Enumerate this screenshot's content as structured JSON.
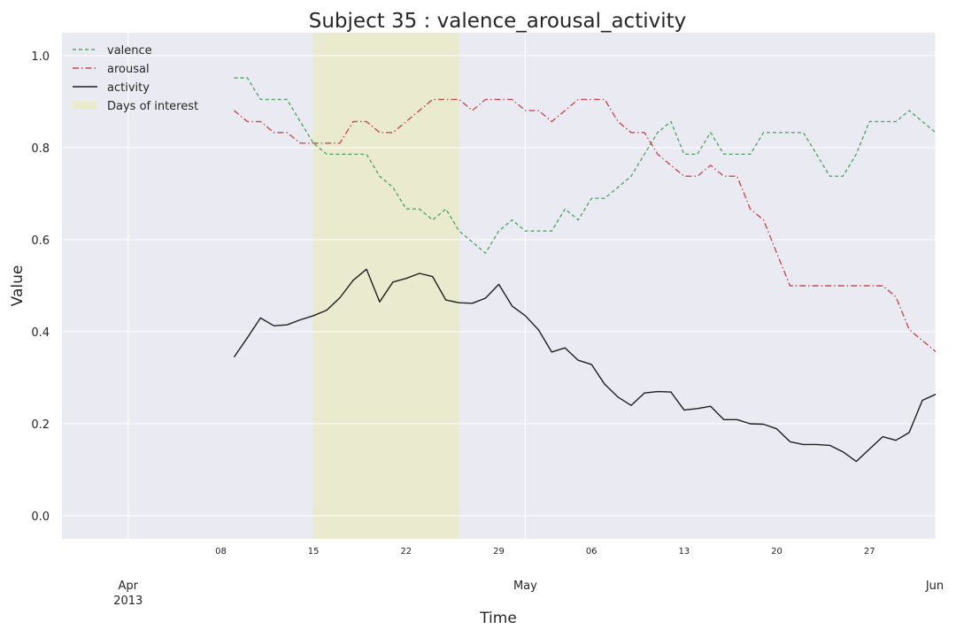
{
  "chart_data": {
    "type": "line",
    "title": "Subject 35 : valence_arousal_activity",
    "xlabel": "Time",
    "ylabel": "Value",
    "xlim": [
      "2013-03-27",
      "2013-06-01"
    ],
    "ylim": [
      -0.05,
      1.05
    ],
    "grid": true,
    "legend_position": "top-left",
    "y_ticks": [
      "0.0",
      "0.2",
      "0.4",
      "0.6",
      "0.8",
      "1.0"
    ],
    "y_tick_values": [
      0.0,
      0.2,
      0.4,
      0.6,
      0.8,
      1.0
    ],
    "x_minor_ticks": [
      {
        "date": "2013-04-08",
        "label": "08"
      },
      {
        "date": "2013-04-15",
        "label": "15"
      },
      {
        "date": "2013-04-22",
        "label": "22"
      },
      {
        "date": "2013-04-29",
        "label": "29"
      },
      {
        "date": "2013-05-06",
        "label": "06"
      },
      {
        "date": "2013-05-13",
        "label": "13"
      },
      {
        "date": "2013-05-20",
        "label": "20"
      },
      {
        "date": "2013-05-27",
        "label": "27"
      }
    ],
    "x_major_ticks": [
      {
        "date": "2013-04-01",
        "label": "Apr",
        "sublabel": "2013"
      },
      {
        "date": "2013-05-01",
        "label": "May",
        "sublabel": ""
      },
      {
        "date": "2013-06-01",
        "label": "Jun",
        "sublabel": ""
      }
    ],
    "shaded_region": {
      "label": "Days of interest",
      "start": "2013-04-15",
      "end": "2013-04-26",
      "color": "#eaeacf"
    },
    "series": [
      {
        "name": "valence",
        "color": "#55a868",
        "dash": "4,3",
        "points": [
          [
            "2013-04-09",
            0.952
          ],
          [
            "2013-04-10",
            0.952
          ],
          [
            "2013-04-11",
            0.905
          ],
          [
            "2013-04-12",
            0.905
          ],
          [
            "2013-04-13",
            0.905
          ],
          [
            "2013-04-14",
            0.857
          ],
          [
            "2013-04-15",
            0.81
          ],
          [
            "2013-04-16",
            0.786
          ],
          [
            "2013-04-17",
            0.786
          ],
          [
            "2013-04-18",
            0.786
          ],
          [
            "2013-04-19",
            0.786
          ],
          [
            "2013-04-20",
            0.738
          ],
          [
            "2013-04-21",
            0.714
          ],
          [
            "2013-04-22",
            0.667
          ],
          [
            "2013-04-23",
            0.667
          ],
          [
            "2013-04-24",
            0.643
          ],
          [
            "2013-04-25",
            0.667
          ],
          [
            "2013-04-26",
            0.619
          ],
          [
            "2013-04-27",
            0.595
          ],
          [
            "2013-04-28",
            0.571
          ],
          [
            "2013-04-29",
            0.619
          ],
          [
            "2013-04-30",
            0.643
          ],
          [
            "2013-05-01",
            0.619
          ],
          [
            "2013-05-02",
            0.619
          ],
          [
            "2013-05-03",
            0.619
          ],
          [
            "2013-05-04",
            0.667
          ],
          [
            "2013-05-05",
            0.643
          ],
          [
            "2013-05-06",
            0.69
          ],
          [
            "2013-05-07",
            0.69
          ],
          [
            "2013-05-08",
            0.714
          ],
          [
            "2013-05-09",
            0.738
          ],
          [
            "2013-05-10",
            0.786
          ],
          [
            "2013-05-11",
            0.833
          ],
          [
            "2013-05-12",
            0.857
          ],
          [
            "2013-05-13",
            0.786
          ],
          [
            "2013-05-14",
            0.786
          ],
          [
            "2013-05-15",
            0.833
          ],
          [
            "2013-05-16",
            0.786
          ],
          [
            "2013-05-17",
            0.786
          ],
          [
            "2013-05-18",
            0.786
          ],
          [
            "2013-05-19",
            0.833
          ],
          [
            "2013-05-20",
            0.833
          ],
          [
            "2013-05-21",
            0.833
          ],
          [
            "2013-05-22",
            0.833
          ],
          [
            "2013-05-23",
            0.786
          ],
          [
            "2013-05-24",
            0.738
          ],
          [
            "2013-05-25",
            0.738
          ],
          [
            "2013-05-26",
            0.786
          ],
          [
            "2013-05-27",
            0.857
          ],
          [
            "2013-05-28",
            0.857
          ],
          [
            "2013-05-29",
            0.857
          ],
          [
            "2013-05-30",
            0.881
          ],
          [
            "2013-05-31",
            0.857
          ],
          [
            "2013-06-01",
            0.833
          ]
        ]
      },
      {
        "name": "arousal",
        "color": "#c44e52",
        "dash": "7,3,1.5,3",
        "points": [
          [
            "2013-04-09",
            0.881
          ],
          [
            "2013-04-10",
            0.857
          ],
          [
            "2013-04-11",
            0.857
          ],
          [
            "2013-04-12",
            0.833
          ],
          [
            "2013-04-13",
            0.833
          ],
          [
            "2013-04-14",
            0.81
          ],
          [
            "2013-04-15",
            0.81
          ],
          [
            "2013-04-16",
            0.81
          ],
          [
            "2013-04-17",
            0.81
          ],
          [
            "2013-04-18",
            0.857
          ],
          [
            "2013-04-19",
            0.857
          ],
          [
            "2013-04-20",
            0.833
          ],
          [
            "2013-04-21",
            0.833
          ],
          [
            "2013-04-22",
            0.857
          ],
          [
            "2013-04-23",
            0.881
          ],
          [
            "2013-04-24",
            0.905
          ],
          [
            "2013-04-25",
            0.905
          ],
          [
            "2013-04-26",
            0.905
          ],
          [
            "2013-04-27",
            0.881
          ],
          [
            "2013-04-28",
            0.905
          ],
          [
            "2013-04-29",
            0.905
          ],
          [
            "2013-04-30",
            0.905
          ],
          [
            "2013-05-01",
            0.881
          ],
          [
            "2013-05-02",
            0.881
          ],
          [
            "2013-05-03",
            0.857
          ],
          [
            "2013-05-04",
            0.881
          ],
          [
            "2013-05-05",
            0.905
          ],
          [
            "2013-05-06",
            0.905
          ],
          [
            "2013-05-07",
            0.905
          ],
          [
            "2013-05-08",
            0.857
          ],
          [
            "2013-05-09",
            0.833
          ],
          [
            "2013-05-10",
            0.833
          ],
          [
            "2013-05-11",
            0.786
          ],
          [
            "2013-05-12",
            0.762
          ],
          [
            "2013-05-13",
            0.738
          ],
          [
            "2013-05-14",
            0.738
          ],
          [
            "2013-05-15",
            0.762
          ],
          [
            "2013-05-16",
            0.738
          ],
          [
            "2013-05-17",
            0.738
          ],
          [
            "2013-05-18",
            0.667
          ],
          [
            "2013-05-19",
            0.643
          ],
          [
            "2013-05-20",
            0.571
          ],
          [
            "2013-05-21",
            0.5
          ],
          [
            "2013-05-22",
            0.5
          ],
          [
            "2013-05-23",
            0.5
          ],
          [
            "2013-05-24",
            0.5
          ],
          [
            "2013-05-25",
            0.5
          ],
          [
            "2013-05-26",
            0.5
          ],
          [
            "2013-05-27",
            0.5
          ],
          [
            "2013-05-28",
            0.5
          ],
          [
            "2013-05-29",
            0.476
          ],
          [
            "2013-05-30",
            0.405
          ],
          [
            "2013-05-31",
            0.381
          ],
          [
            "2013-06-01",
            0.357
          ]
        ]
      },
      {
        "name": "activity",
        "color": "#1f1f1f",
        "dash": "",
        "points": [
          [
            "2013-04-09",
            0.345
          ],
          [
            "2013-04-10",
            0.387
          ],
          [
            "2013-04-11",
            0.43
          ],
          [
            "2013-04-12",
            0.413
          ],
          [
            "2013-04-13",
            0.415
          ],
          [
            "2013-04-14",
            0.426
          ],
          [
            "2013-04-15",
            0.435
          ],
          [
            "2013-04-16",
            0.447
          ],
          [
            "2013-04-17",
            0.474
          ],
          [
            "2013-04-18",
            0.512
          ],
          [
            "2013-04-19",
            0.536
          ],
          [
            "2013-04-20",
            0.465
          ],
          [
            "2013-04-21",
            0.508
          ],
          [
            "2013-04-22",
            0.516
          ],
          [
            "2013-04-23",
            0.527
          ],
          [
            "2013-04-24",
            0.52
          ],
          [
            "2013-04-25",
            0.469
          ],
          [
            "2013-04-26",
            0.463
          ],
          [
            "2013-04-27",
            0.462
          ],
          [
            "2013-04-28",
            0.473
          ],
          [
            "2013-04-29",
            0.503
          ],
          [
            "2013-04-30",
            0.456
          ],
          [
            "2013-05-01",
            0.435
          ],
          [
            "2013-05-02",
            0.404
          ],
          [
            "2013-05-03",
            0.356
          ],
          [
            "2013-05-04",
            0.365
          ],
          [
            "2013-05-05",
            0.338
          ],
          [
            "2013-05-06",
            0.329
          ],
          [
            "2013-05-07",
            0.286
          ],
          [
            "2013-05-08",
            0.258
          ],
          [
            "2013-05-09",
            0.24
          ],
          [
            "2013-05-10",
            0.267
          ],
          [
            "2013-05-11",
            0.27
          ],
          [
            "2013-05-12",
            0.269
          ],
          [
            "2013-05-13",
            0.23
          ],
          [
            "2013-05-14",
            0.233
          ],
          [
            "2013-05-15",
            0.238
          ],
          [
            "2013-05-16",
            0.209
          ],
          [
            "2013-05-17",
            0.209
          ],
          [
            "2013-05-18",
            0.2
          ],
          [
            "2013-05-19",
            0.199
          ],
          [
            "2013-05-20",
            0.189
          ],
          [
            "2013-05-21",
            0.161
          ],
          [
            "2013-05-22",
            0.155
          ],
          [
            "2013-05-23",
            0.155
          ],
          [
            "2013-05-24",
            0.153
          ],
          [
            "2013-05-25",
            0.139
          ],
          [
            "2013-05-26",
            0.118
          ],
          [
            "2013-05-27",
            0.145
          ],
          [
            "2013-05-28",
            0.172
          ],
          [
            "2013-05-29",
            0.164
          ],
          [
            "2013-05-30",
            0.181
          ],
          [
            "2013-05-31",
            0.251
          ],
          [
            "2013-06-01",
            0.264
          ]
        ]
      }
    ]
  }
}
